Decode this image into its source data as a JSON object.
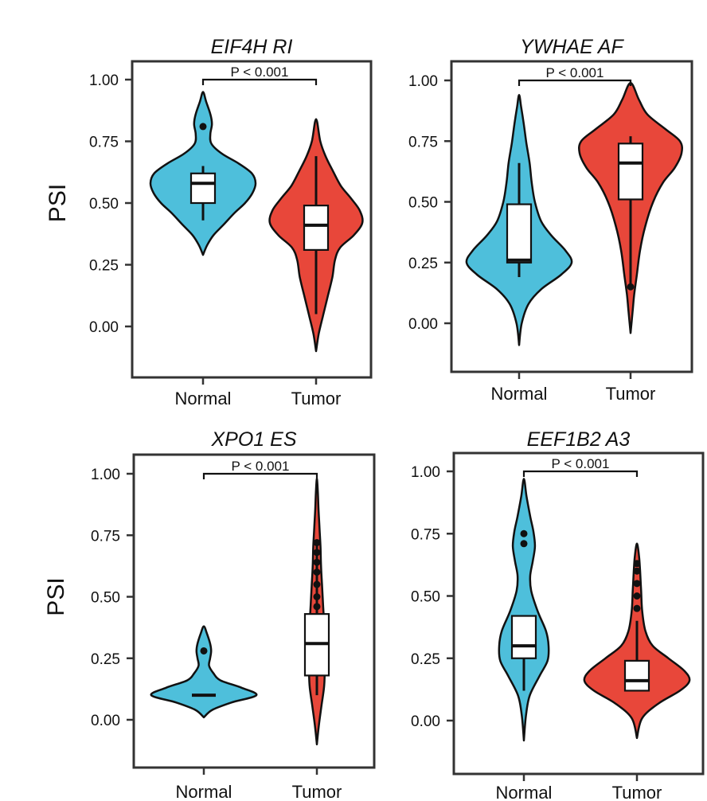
{
  "chart_data": [
    {
      "type": "violin",
      "title": "EIF4H RI",
      "ylabel": "PSI",
      "ylim": [
        -0.2,
        1.1
      ],
      "yticks": [
        "0.00",
        "0.25",
        "0.50",
        "0.75",
        "1.00"
      ],
      "categories": [
        "Normal",
        "Tumor"
      ],
      "significance": "P < 0.001",
      "series": [
        {
          "name": "Normal",
          "color": "#4ebfdb",
          "min": 0.29,
          "max": 0.95,
          "whisker_low": 0.43,
          "q1": 0.5,
          "median": 0.58,
          "q3": 0.62,
          "whisker_high": 0.65,
          "outliers": [
            0.81
          ],
          "density": [
            [
              0.29,
              0.0
            ],
            [
              0.33,
              0.08
            ],
            [
              0.37,
              0.2
            ],
            [
              0.41,
              0.38
            ],
            [
              0.46,
              0.6
            ],
            [
              0.5,
              0.8
            ],
            [
              0.54,
              0.94
            ],
            [
              0.58,
              1.0
            ],
            [
              0.62,
              0.93
            ],
            [
              0.66,
              0.68
            ],
            [
              0.7,
              0.36
            ],
            [
              0.74,
              0.16
            ],
            [
              0.78,
              0.14
            ],
            [
              0.82,
              0.17
            ],
            [
              0.86,
              0.14
            ],
            [
              0.91,
              0.06
            ],
            [
              0.95,
              0.0
            ]
          ]
        },
        {
          "name": "Tumor",
          "color": "#e8473a",
          "min": -0.1,
          "max": 0.84,
          "whisker_low": 0.05,
          "q1": 0.31,
          "median": 0.41,
          "q3": 0.49,
          "whisker_high": 0.69,
          "outliers": [],
          "density": [
            [
              -0.1,
              0.0
            ],
            [
              -0.03,
              0.05
            ],
            [
              0.05,
              0.14
            ],
            [
              0.12,
              0.22
            ],
            [
              0.2,
              0.31
            ],
            [
              0.27,
              0.36
            ],
            [
              0.32,
              0.46
            ],
            [
              0.37,
              0.72
            ],
            [
              0.42,
              0.88
            ],
            [
              0.47,
              0.83
            ],
            [
              0.52,
              0.66
            ],
            [
              0.57,
              0.47
            ],
            [
              0.63,
              0.32
            ],
            [
              0.69,
              0.18
            ],
            [
              0.75,
              0.08
            ],
            [
              0.84,
              0.0
            ]
          ]
        }
      ]
    },
    {
      "type": "violin",
      "title": "YWHAE AF",
      "ylabel": "",
      "ylim": [
        -0.2,
        1.1
      ],
      "yticks": [
        "0.00",
        "0.25",
        "0.50",
        "0.75",
        "1.00"
      ],
      "categories": [
        "Normal",
        "Tumor"
      ],
      "significance": "P < 0.001",
      "series": [
        {
          "name": "Normal",
          "color": "#4ebfdb",
          "min": -0.09,
          "max": 0.94,
          "whisker_low": 0.19,
          "q1": 0.25,
          "median": 0.26,
          "q3": 0.49,
          "whisker_high": 0.66,
          "outliers": [],
          "density": [
            [
              -0.09,
              0.0
            ],
            [
              0.0,
              0.05
            ],
            [
              0.08,
              0.18
            ],
            [
              0.14,
              0.42
            ],
            [
              0.2,
              0.8
            ],
            [
              0.25,
              1.0
            ],
            [
              0.3,
              0.88
            ],
            [
              0.36,
              0.62
            ],
            [
              0.42,
              0.42
            ],
            [
              0.5,
              0.3
            ],
            [
              0.58,
              0.24
            ],
            [
              0.66,
              0.2
            ],
            [
              0.74,
              0.14
            ],
            [
              0.82,
              0.09
            ],
            [
              0.89,
              0.04
            ],
            [
              0.94,
              0.0
            ]
          ]
        },
        {
          "name": "Tumor",
          "color": "#e8473a",
          "min": -0.04,
          "max": 0.99,
          "whisker_low": 0.15,
          "q1": 0.51,
          "median": 0.66,
          "q3": 0.74,
          "whisker_high": 0.77,
          "outliers": [
            0.15
          ],
          "density": [
            [
              -0.04,
              0.0
            ],
            [
              0.05,
              0.04
            ],
            [
              0.12,
              0.07
            ],
            [
              0.2,
              0.12
            ],
            [
              0.3,
              0.18
            ],
            [
              0.4,
              0.28
            ],
            [
              0.5,
              0.43
            ],
            [
              0.58,
              0.62
            ],
            [
              0.64,
              0.84
            ],
            [
              0.7,
              0.97
            ],
            [
              0.75,
              0.94
            ],
            [
              0.8,
              0.66
            ],
            [
              0.86,
              0.32
            ],
            [
              0.92,
              0.16
            ],
            [
              0.99,
              0.0
            ]
          ]
        }
      ]
    },
    {
      "type": "violin",
      "title": "XPO1 ES",
      "ylabel": "PSI",
      "ylim": [
        -0.2,
        1.1
      ],
      "yticks": [
        "0.00",
        "0.25",
        "0.50",
        "0.75",
        "1.00"
      ],
      "categories": [
        "Normal",
        "Tumor"
      ],
      "significance": "P < 0.001",
      "series": [
        {
          "name": "Normal",
          "color": "#4ebfdb",
          "min": 0.01,
          "max": 0.38,
          "whisker_low": 0.1,
          "q1": 0.1,
          "median": 0.1,
          "q3": 0.1,
          "whisker_high": 0.1,
          "outliers": [
            0.28
          ],
          "density": [
            [
              0.01,
              0.0
            ],
            [
              0.04,
              0.16
            ],
            [
              0.07,
              0.52
            ],
            [
              0.1,
              1.0
            ],
            [
              0.13,
              0.72
            ],
            [
              0.16,
              0.32
            ],
            [
              0.19,
              0.18
            ],
            [
              0.22,
              0.1
            ],
            [
              0.25,
              0.12
            ],
            [
              0.28,
              0.14
            ],
            [
              0.31,
              0.12
            ],
            [
              0.35,
              0.06
            ],
            [
              0.38,
              0.0
            ]
          ]
        },
        {
          "name": "Tumor",
          "color": "#e8473a",
          "min": -0.1,
          "max": 0.98,
          "whisker_low": 0.1,
          "q1": 0.18,
          "median": 0.31,
          "q3": 0.43,
          "whisker_high": 0.73,
          "outliers": [
            0.46,
            0.5,
            0.55,
            0.6,
            0.64,
            0.68,
            0.72
          ],
          "density": [
            [
              -0.1,
              0.0
            ],
            [
              -0.02,
              0.04
            ],
            [
              0.06,
              0.09
            ],
            [
              0.14,
              0.14
            ],
            [
              0.22,
              0.15
            ],
            [
              0.3,
              0.15
            ],
            [
              0.38,
              0.14
            ],
            [
              0.46,
              0.12
            ],
            [
              0.54,
              0.1
            ],
            [
              0.62,
              0.08
            ],
            [
              0.7,
              0.07
            ],
            [
              0.78,
              0.05
            ],
            [
              0.86,
              0.03
            ],
            [
              0.92,
              0.02
            ],
            [
              0.98,
              0.0
            ]
          ]
        }
      ]
    },
    {
      "type": "violin",
      "title": "EEF1B2 A3",
      "ylabel": "",
      "ylim": [
        -0.2,
        1.1
      ],
      "yticks": [
        "0.00",
        "0.25",
        "0.50",
        "0.75",
        "1.00"
      ],
      "categories": [
        "Normal",
        "Tumor"
      ],
      "significance": "P < 0.001",
      "series": [
        {
          "name": "Normal",
          "color": "#4ebfdb",
          "min": -0.08,
          "max": 0.97,
          "whisker_low": 0.12,
          "q1": 0.25,
          "median": 0.3,
          "q3": 0.42,
          "whisker_high": 0.42,
          "outliers": [
            0.71,
            0.75
          ],
          "density": [
            [
              -0.08,
              0.0
            ],
            [
              0.02,
              0.04
            ],
            [
              0.1,
              0.11
            ],
            [
              0.18,
              0.3
            ],
            [
              0.24,
              0.45
            ],
            [
              0.3,
              0.47
            ],
            [
              0.36,
              0.42
            ],
            [
              0.44,
              0.26
            ],
            [
              0.52,
              0.14
            ],
            [
              0.58,
              0.12
            ],
            [
              0.64,
              0.17
            ],
            [
              0.7,
              0.21
            ],
            [
              0.76,
              0.18
            ],
            [
              0.82,
              0.12
            ],
            [
              0.9,
              0.05
            ],
            [
              0.97,
              0.0
            ]
          ]
        },
        {
          "name": "Tumor",
          "color": "#e8473a",
          "min": -0.07,
          "max": 0.71,
          "whisker_low": 0.12,
          "q1": 0.12,
          "median": 0.16,
          "q3": 0.24,
          "whisker_high": 0.4,
          "outliers": [
            0.45,
            0.5,
            0.55,
            0.6,
            0.63
          ],
          "density": [
            [
              -0.07,
              0.0
            ],
            [
              0.01,
              0.1
            ],
            [
              0.07,
              0.42
            ],
            [
              0.12,
              0.82
            ],
            [
              0.16,
              1.0
            ],
            [
              0.2,
              0.9
            ],
            [
              0.25,
              0.6
            ],
            [
              0.3,
              0.3
            ],
            [
              0.36,
              0.16
            ],
            [
              0.44,
              0.1
            ],
            [
              0.52,
              0.08
            ],
            [
              0.6,
              0.06
            ],
            [
              0.66,
              0.04
            ],
            [
              0.71,
              0.0
            ]
          ]
        }
      ]
    }
  ]
}
